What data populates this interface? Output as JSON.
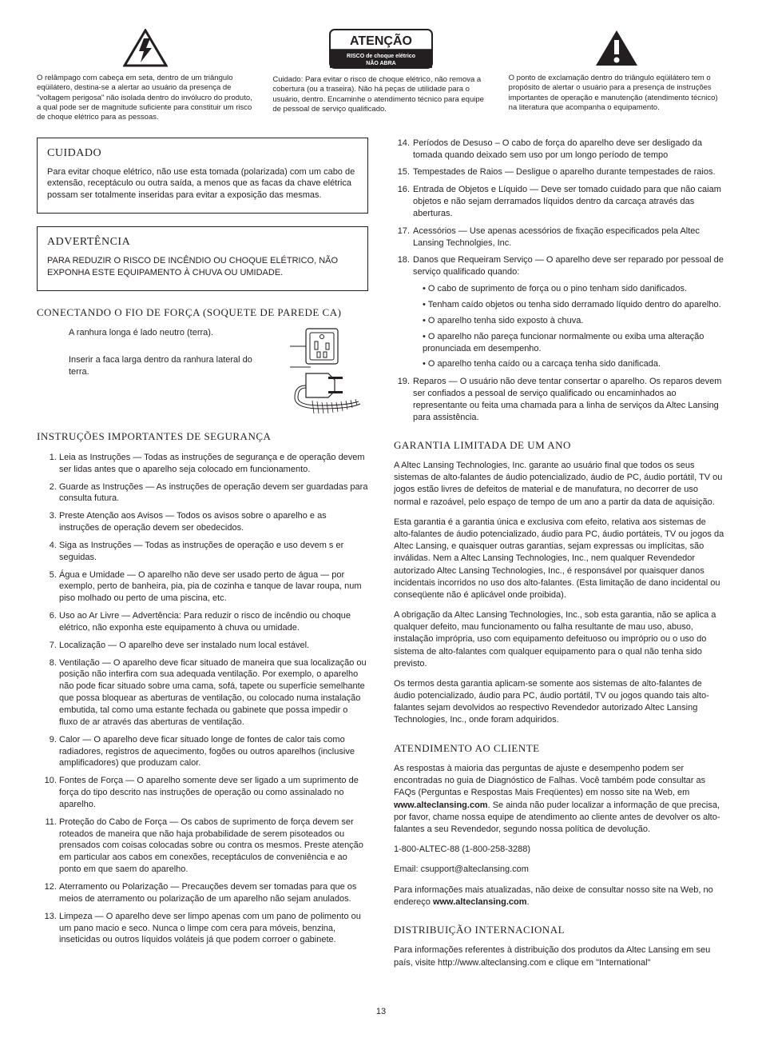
{
  "icons": {
    "lightning": {
      "caption": "O relâmpago com cabeça em seta, dentro de um triângulo eqüilátero, destina-se a alertar ao usuário da presença de \"voltagem perigosa\" não isolada dentro do invólucro do produto, a qual pode ser de magnitude suficiente para constituir um risco de choque elétrico para as pessoas."
    },
    "atencao": {
      "title": "ATENÇÃO",
      "sub1": "RISCO de choque elétrico",
      "sub2": "NÃO ABRA",
      "caption": "Cuidado: Para evitar o risco de choque elétrico, não remova a cobertura (ou a traseira). Não há peças de utilidade para o usuário, dentro. Encaminhe o atendimento técnico para equipe de pessoal de serviço qualificado."
    },
    "exclaim": {
      "caption": "O ponto de exclamação dentro do triângulo eqüilátero tem o propósito de alertar o usuário para a presença de instruções importantes de operação e manutenção (atendimento técnico) na literatura que acompanha o equipamento."
    }
  },
  "cuidado": {
    "title": "CUIDADO",
    "body": "Para evitar choque elétrico, não use esta tomada (polarizada) com um cabo de extensão, receptáculo ou outra saída, a menos que as facas da chave elétrica possam ser totalmente inseridas para evitar a exposição das mesmas."
  },
  "advertencia": {
    "title": "ADVERTÊNCIA",
    "body": "PARA REDUZIR O RISCO DE INCÊNDIO OU CHOQUE ELÉTRICO, NÃO EXPONHA ESTE EQUIPAMENTO À CHUVA OU UMIDADE."
  },
  "conectando": {
    "title": "CONECTANDO O FIO DE FORÇA (SOQUETE DE PAREDE CA)",
    "label1": "A ranhura longa é lado neutro (terra).",
    "label2": "Inserir a faca larga dentro da ranhura lateral do terra."
  },
  "instrucoes": {
    "title": "INSTRUÇÕES IMPORTANTES DE SEGURANÇA",
    "items_left": [
      "Leia as Instruções — Todas as instruções de segurança e de operação devem ser lidas antes que o aparelho seja colocado em funcionamento.",
      "Guarde as Instruções — As instruções de operação devem ser guardadas para consulta futura.",
      "Preste Atenção aos Avisos — Todos os avisos sobre o aparelho e as instruções de operação devem ser obedecidos.",
      "Siga as Instruções — Todas as instruções de operação e uso devem s er seguidas.",
      "Água e Umidade — O aparelho não deve ser usado perto de água — por exemplo, perto de banheira, pia, pia de cozinha e tanque de lavar roupa, num piso molhado ou perto de uma piscina, etc.",
      "Uso ao Ar Livre — Advertência: Para reduzir o risco de incêndio ou choque elétrico, não exponha este equipamento à chuva ou umidade.",
      "Localização — O aparelho deve ser instalado num local estável.",
      "Ventilação — O aparelho deve ficar situado de maneira que sua localização ou posição não interfira com sua adequada ventilação. Por exemplo, o aparelho não pode ficar situado sobre uma cama, sofá, tapete ou superfície semelhante que possa bloquear as aberturas de ventilação, ou colocado numa instalação embutida, tal como uma estante fechada ou gabinete que possa impedir o fluxo de ar através das aberturas de ventilação.",
      "Calor — O aparelho deve ficar situado longe de fontes de calor tais como radiadores, registros de aquecimento, fogões ou outros aparelhos (inclusive amplificadores) que produzam calor.",
      "Fontes de Força — O aparelho somente deve ser ligado a um suprimento de força do tipo descrito nas instruções de operação ou como assinalado no aparelho.",
      "Proteção do Cabo de Força — Os cabos de suprimento de força devem ser roteados de maneira que não haja probabilidade de serem pisoteados ou prensados com coisas colocadas sobre ou contra os mesmos. Preste atenção em particular aos cabos em conexões, receptáculos de conveniência e ao ponto em que saem do aparelho.",
      "Aterramento ou Polarização — Precauções devem ser tomadas para que os meios de aterramento ou polarização de um aparelho não sejam anulados.",
      "Limpeza — O aparelho deve ser limpo apenas com um pano de polimento ou um pano macio e seco. Nunca o limpe com cera para móveis, benzina, inseticidas ou outros líquidos voláteis já que podem corroer o gabinete."
    ],
    "items_right": [
      {
        "text": "Períodos de Desuso – O cabo de força do aparelho deve ser desligado da tomada quando deixado sem uso por um longo período de tempo"
      },
      {
        "text": "Tempestades de Raios — Desligue o aparelho durante tempestades de raios."
      },
      {
        "text": "Entrada de Objetos e Líquido — Deve ser tomado cuidado para que não caiam objetos e não sejam derramados líquidos dentro da carcaça através das aberturas."
      },
      {
        "text": "Acessórios — Use apenas acessórios de fixação especificados pela Altec Lansing Technolgies, Inc."
      },
      {
        "text": "Danos que Requeiram Serviço — O aparelho deve ser reparado por pessoal de serviço qualificado quando:",
        "sub": [
          "O cabo de suprimento de força ou o pino tenham sido danificados.",
          "Tenham caído objetos ou tenha sido derramado líquido dentro do aparelho.",
          "O aparelho tenha sido exposto à chuva.",
          "O aparelho não pareça funcionar normalmente ou exiba uma alteração pronunciada em desempenho.",
          "O aparelho tenha caído ou a carcaça tenha sido danificada."
        ]
      },
      {
        "text": "Reparos — O usuário não deve tentar consertar o aparelho. Os reparos devem ser confiados a pessoal de serviço qualificado ou encaminhados ao representante ou feita uma chamada para a linha de serviços da Altec Lansing para assistência."
      }
    ]
  },
  "garantia": {
    "title": "GARANTIA LIMITADA DE UM ANO",
    "p1": "A Altec Lansing Technologies, Inc. garante ao usuário final que todos os seus sistemas de alto-falantes de áudio potencializado, áudio de PC, áudio portátil, TV ou jogos estão livres de defeitos de material e de manufatura, no decorrer de uso normal e razoável, pelo espaço de tempo de um ano a partir da data de aquisição.",
    "p2": "Esta garantia é a garantia única e exclusiva com efeito, relativa aos sistemas de alto-falantes de áudio potencializado, áudio para PC, áudio portáteis, TV ou jogos da Altec Lansing, e quaisquer outras garantias, sejam expressas ou implícitas, são inválidas. Nem a Altec Lansing Technologies, Inc., nem qualquer Revendedor autorizado Altec Lansing Technologies, Inc., é responsável por quaisquer danos incidentais incorridos no uso dos alto-falantes. (Esta limitação de dano incidental ou conseqüente não é aplicável onde proibida).",
    "p3": "A obrigação da Altec Lansing Technologies, Inc., sob esta garantia, não se aplica a qualquer defeito, mau funcionamento ou falha resultante de mau uso, abuso, instalação imprópria, uso com equipamento defeituoso ou impróprio ou o uso do sistema de alto-falantes com qualquer equipamento para o qual não tenha sido previsto.",
    "p4": "Os termos desta garantia aplicam-se somente aos sistemas de alto-falantes de áudio potencializado, áudio para PC, áudio portátil, TV ou jogos quando tais alto-falantes sejam devolvidos ao respectivo Revendedor autorizado Altec Lansing Technologies, Inc., onde foram adquiridos."
  },
  "atendimento": {
    "title": "ATENDIMENTO AO CLIENTE",
    "p1a": "As respostas à maioria das perguntas de ajuste e desempenho podem ser encontradas no guia de Diagnóstico de Falhas. Você também pode consultar as FAQs (Perguntas e Respostas Mais Freqüentes) em nosso site na Web, em ",
    "p1site": "www.alteclansing.com",
    "p1b": ". Se ainda não puder localizar a informação de que precisa, por favor, chame nossa equipe de atendimento ao cliente antes de devolver os alto-falantes a seu Revendedor, segundo nossa política de devolução.",
    "phone": "1-800-ALTEC-88 (1-800-258-3288)",
    "email": "Email: csupport@alteclansing.com",
    "p2a": "Para informações mais atualizadas, não deixe de consultar nosso site na Web, no endereço ",
    "p2site": "www.alteclansing.com",
    "p2b": "."
  },
  "distrib": {
    "title": "DISTRIBUIÇÃO INTERNACIONAL",
    "body": "Para informações referentes à distribuição dos produtos da Altec Lansing em seu país, visite http://www.alteclansing.com e clique em \"International\""
  },
  "page": "13"
}
